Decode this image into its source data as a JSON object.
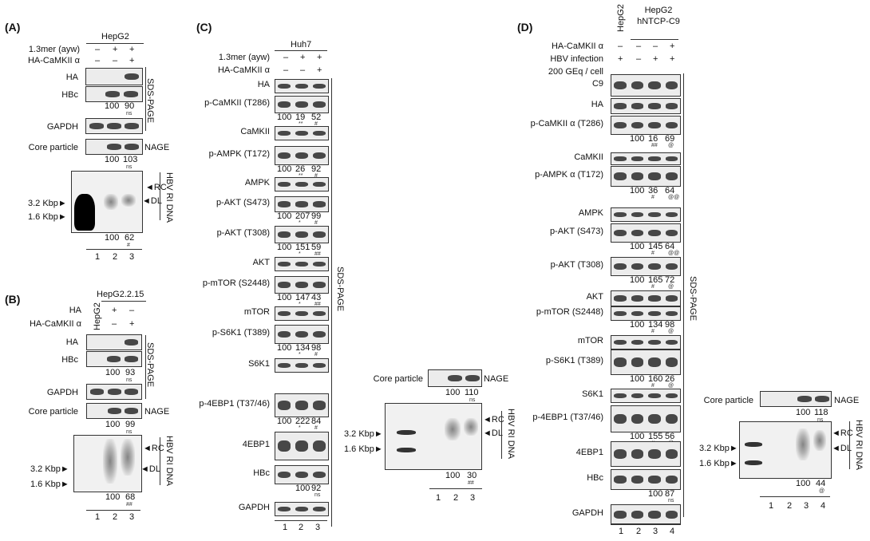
{
  "panelA": {
    "label": "(A)",
    "cell": "HepG2",
    "rows": [
      "1.3mer (ayw)",
      "HA-CaMKII α"
    ],
    "signs": [
      [
        "–",
        "+",
        "+"
      ],
      [
        "–",
        "–",
        "+"
      ]
    ],
    "blots": [
      "HA",
      "HBc",
      "GAPDH"
    ],
    "hbc_vals": [
      "100",
      "90"
    ],
    "hbc_sig": [
      "",
      "ns"
    ],
    "sds": "SDS-PAGE",
    "core": "Core particle",
    "nage": "NAGE",
    "core_vals": [
      "100",
      "103"
    ],
    "core_sig": [
      "",
      "ns"
    ],
    "kbp1": "3.2 Kbp",
    "kbp2": "1.6 Kbp",
    "rc": "RC",
    "dl": "DL",
    "hbv": "HBV RI DNA",
    "dna_vals": [
      "100",
      "62"
    ],
    "dna_sig": [
      "",
      "#"
    ],
    "lanes": [
      "1",
      "2",
      "3"
    ]
  },
  "panelB": {
    "label": "(B)",
    "cell": "HepG2.2.15",
    "hepg2": "HepG2",
    "rows": [
      "HA",
      "HA-CaMKII α"
    ],
    "signs": [
      [
        "+",
        "–"
      ],
      [
        "–",
        "+"
      ]
    ],
    "blots": [
      "HA",
      "HBc",
      "GAPDH"
    ],
    "hbc_vals": [
      "100",
      "93"
    ],
    "hbc_sig": [
      "",
      "ns"
    ],
    "sds": "SDS-PAGE",
    "core": "Core particle",
    "nage": "NAGE",
    "core_vals": [
      "100",
      "99"
    ],
    "core_sig": [
      "",
      "ns"
    ],
    "kbp1": "3.2 Kbp",
    "kbp2": "1.6 Kbp",
    "rc": "RC",
    "dl": "DL",
    "hbv": "HBV RI DNA",
    "dna_vals": [
      "100",
      "68"
    ],
    "dna_sig": [
      "",
      "##"
    ],
    "lanes": [
      "1",
      "2",
      "3"
    ]
  },
  "panelC": {
    "label": "(C)",
    "cell": "Huh7",
    "rows": [
      "1.3mer (ayw)",
      "HA-CaMKII α"
    ],
    "signs": [
      [
        "–",
        "+",
        "+"
      ],
      [
        "–",
        "–",
        "+"
      ]
    ],
    "blots": [
      {
        "name": "HA"
      },
      {
        "name": "p-CaMKII (T286)",
        "vals": [
          "100",
          "19",
          "52"
        ],
        "sig": [
          "",
          "**",
          "#"
        ]
      },
      {
        "name": "CaMKII"
      },
      {
        "name": "p-AMPK (T172)",
        "vals": [
          "100",
          "26",
          "92"
        ],
        "sig": [
          "",
          "**",
          "#"
        ]
      },
      {
        "name": "AMPK"
      },
      {
        "name": "p-AKT (S473)",
        "vals": [
          "100",
          "207",
          "99"
        ],
        "sig": [
          "",
          "*",
          "#"
        ]
      },
      {
        "name": "p-AKT (T308)",
        "vals": [
          "100",
          "151",
          "59"
        ],
        "sig": [
          "",
          "*",
          "##"
        ]
      },
      {
        "name": "AKT"
      },
      {
        "name": "p-mTOR (S2448)",
        "vals": [
          "100",
          "147",
          "43"
        ],
        "sig": [
          "",
          "*",
          "##"
        ]
      },
      {
        "name": "mTOR"
      },
      {
        "name": "p-S6K1 (T389)",
        "vals": [
          "100",
          "134",
          "98"
        ],
        "sig": [
          "",
          "*",
          "#"
        ]
      },
      {
        "name": "S6K1"
      },
      {
        "name": "p-4EBP1 (T37/46)",
        "vals": [
          "100",
          "222",
          "84"
        ],
        "sig": [
          "",
          "*",
          "#"
        ]
      },
      {
        "name": "4EBP1"
      },
      {
        "name": "HBc",
        "vals": [
          "",
          "100",
          "92"
        ],
        "sig": [
          "",
          "",
          "ns"
        ]
      },
      {
        "name": "GAPDH"
      }
    ],
    "sds": "SDS-PAGE",
    "lanes": [
      "1",
      "2",
      "3"
    ],
    "core": "Core particle",
    "nage": "NAGE",
    "core_vals": [
      "100",
      "110"
    ],
    "core_sig": [
      "",
      "ns"
    ],
    "kbp1": "3.2 Kbp",
    "kbp2": "1.6 Kbp",
    "rc": "RC",
    "dl": "DL",
    "hbv": "HBV RI DNA",
    "dna_vals": [
      "100",
      "30"
    ],
    "dna_sig": [
      "",
      "##"
    ],
    "dna_lanes": [
      "1",
      "2",
      "3"
    ]
  },
  "panelD": {
    "label": "(D)",
    "hepg2": "HepG2",
    "cell": "HepG2 hNTCP-C9",
    "rows": [
      "HA-CaMKII α",
      "HBV infection",
      "200 GEq / cell"
    ],
    "signs": [
      [
        "–",
        "–",
        "–",
        "+"
      ],
      [
        "+",
        "–",
        "+",
        "+"
      ]
    ],
    "blots": [
      {
        "name": "C9"
      },
      {
        "name": "HA"
      },
      {
        "name": "p-CaMKII α (T286)",
        "vals": [
          "100",
          "16",
          "69"
        ],
        "sig": [
          "",
          "##",
          "@"
        ]
      },
      {
        "name": "CaMKII"
      },
      {
        "name": "p-AMPK α (T172)",
        "vals": [
          "100",
          "36",
          "64"
        ],
        "sig": [
          "",
          "#",
          "@@"
        ]
      },
      {
        "name": "AMPK"
      },
      {
        "name": "p-AKT (S473)",
        "vals": [
          "100",
          "145",
          "64"
        ],
        "sig": [
          "",
          "#",
          "@@"
        ]
      },
      {
        "name": "p-AKT (T308)",
        "vals": [
          "100",
          "165",
          "72"
        ],
        "sig": [
          "",
          "#",
          "@"
        ]
      },
      {
        "name": "AKT"
      },
      {
        "name": "p-mTOR (S2448)",
        "vals": [
          "100",
          "134",
          "98"
        ],
        "sig": [
          "",
          "#",
          "@"
        ]
      },
      {
        "name": "mTOR"
      },
      {
        "name": "p-S6K1 (T389)",
        "vals": [
          "100",
          "160",
          "26"
        ],
        "sig": [
          "",
          "#",
          "@"
        ]
      },
      {
        "name": "S6K1"
      },
      {
        "name": "p-4EBP1 (T37/46)",
        "vals": [
          "100",
          "155",
          "56"
        ],
        "sig": [
          "",
          "#",
          "@"
        ]
      },
      {
        "name": "4EBP1"
      },
      {
        "name": "HBc",
        "vals": [
          "",
          "100",
          "87"
        ],
        "sig": [
          "",
          "",
          "ns"
        ]
      },
      {
        "name": "GAPDH"
      }
    ],
    "sds": "SDS-PAGE",
    "lanes": [
      "1",
      "2",
      "3",
      "4"
    ],
    "core": "Core particle",
    "nage": "NAGE",
    "core_vals": [
      "100",
      "118"
    ],
    "core_sig": [
      "",
      "ns"
    ],
    "kbp1": "3.2 Kbp",
    "kbp2": "1.6 Kbp",
    "rc": "RC",
    "dl": "DL",
    "hbv": "HBV RI DNA",
    "dna_vals": [
      "100",
      "44"
    ],
    "dna_sig": [
      "",
      "@"
    ],
    "dna_lanes": [
      "1",
      "2",
      "3",
      "4"
    ]
  }
}
